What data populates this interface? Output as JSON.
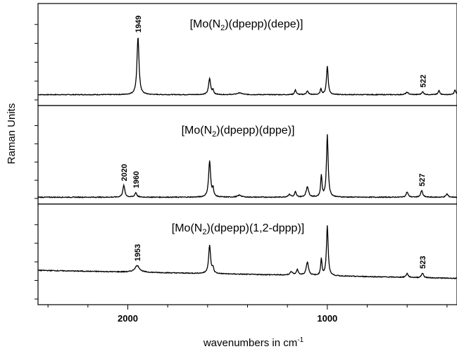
{
  "chart_data": {
    "type": "line",
    "xlabel": "wavenumbers in cm",
    "xlabel_sup": "-1",
    "ylabel": "Raman Units",
    "xlim": [
      2450,
      350
    ],
    "x_ticks": [
      2000,
      1000
    ],
    "x_tick_labels": [
      "2000",
      "1000"
    ],
    "stacked": true,
    "grid": false,
    "panels": [
      {
        "title_parts": [
          "[Mo(N",
          "2",
          ")(dpepp)(depe)]"
        ],
        "peak_labels": [
          "1949",
          "522"
        ],
        "annotated_peaks": [
          1949,
          522
        ],
        "baseline": 0.03,
        "drift": 0.0,
        "peaks": [
          {
            "x": 1949,
            "h": 1.0,
            "w": 6
          },
          {
            "x": 1590,
            "h": 0.28,
            "w": 6
          },
          {
            "x": 1573,
            "h": 0.08,
            "w": 4
          },
          {
            "x": 1440,
            "h": 0.03,
            "w": 15
          },
          {
            "x": 1160,
            "h": 0.08,
            "w": 5
          },
          {
            "x": 1100,
            "h": 0.06,
            "w": 6
          },
          {
            "x": 1032,
            "h": 0.1,
            "w": 4
          },
          {
            "x": 1000,
            "h": 0.5,
            "w": 5
          },
          {
            "x": 600,
            "h": 0.04,
            "w": 8
          },
          {
            "x": 522,
            "h": 0.05,
            "w": 6
          },
          {
            "x": 440,
            "h": 0.07,
            "w": 5
          },
          {
            "x": 360,
            "h": 0.08,
            "w": 5
          }
        ]
      },
      {
        "title_parts": [
          "[Mo(N",
          "2",
          ")(dpepp)(dppe)]"
        ],
        "peak_labels": [
          "2020",
          "1960",
          "527"
        ],
        "annotated_peaks": [
          2020,
          1960,
          527
        ],
        "baseline": 0.04,
        "drift": 0.0,
        "peaks": [
          {
            "x": 2020,
            "h": 0.18,
            "w": 6
          },
          {
            "x": 1960,
            "h": 0.07,
            "w": 6
          },
          {
            "x": 1590,
            "h": 0.55,
            "w": 6
          },
          {
            "x": 1573,
            "h": 0.12,
            "w": 4
          },
          {
            "x": 1440,
            "h": 0.03,
            "w": 12
          },
          {
            "x": 1190,
            "h": 0.04,
            "w": 8
          },
          {
            "x": 1160,
            "h": 0.08,
            "w": 5
          },
          {
            "x": 1100,
            "h": 0.16,
            "w": 7
          },
          {
            "x": 1030,
            "h": 0.33,
            "w": 4
          },
          {
            "x": 1000,
            "h": 0.95,
            "w": 5
          },
          {
            "x": 600,
            "h": 0.08,
            "w": 6
          },
          {
            "x": 527,
            "h": 0.1,
            "w": 6
          },
          {
            "x": 400,
            "h": 0.05,
            "w": 6
          }
        ]
      },
      {
        "title_parts": [
          "[Mo(N",
          "2",
          ")(dpepp)(1,2-dppp)]"
        ],
        "peak_labels": [
          "1953",
          "523"
        ],
        "annotated_peaks": [
          1953,
          523
        ],
        "baseline": 0.12,
        "drift": 0.12,
        "peaks": [
          {
            "x": 1953,
            "h": 0.1,
            "w": 14
          },
          {
            "x": 1590,
            "h": 0.42,
            "w": 6
          },
          {
            "x": 1573,
            "h": 0.08,
            "w": 4
          },
          {
            "x": 1180,
            "h": 0.05,
            "w": 8
          },
          {
            "x": 1150,
            "h": 0.08,
            "w": 6
          },
          {
            "x": 1100,
            "h": 0.2,
            "w": 7
          },
          {
            "x": 1030,
            "h": 0.25,
            "w": 4
          },
          {
            "x": 1000,
            "h": 0.75,
            "w": 5
          },
          {
            "x": 600,
            "h": 0.06,
            "w": 6
          },
          {
            "x": 523,
            "h": 0.07,
            "w": 6
          }
        ]
      }
    ]
  }
}
